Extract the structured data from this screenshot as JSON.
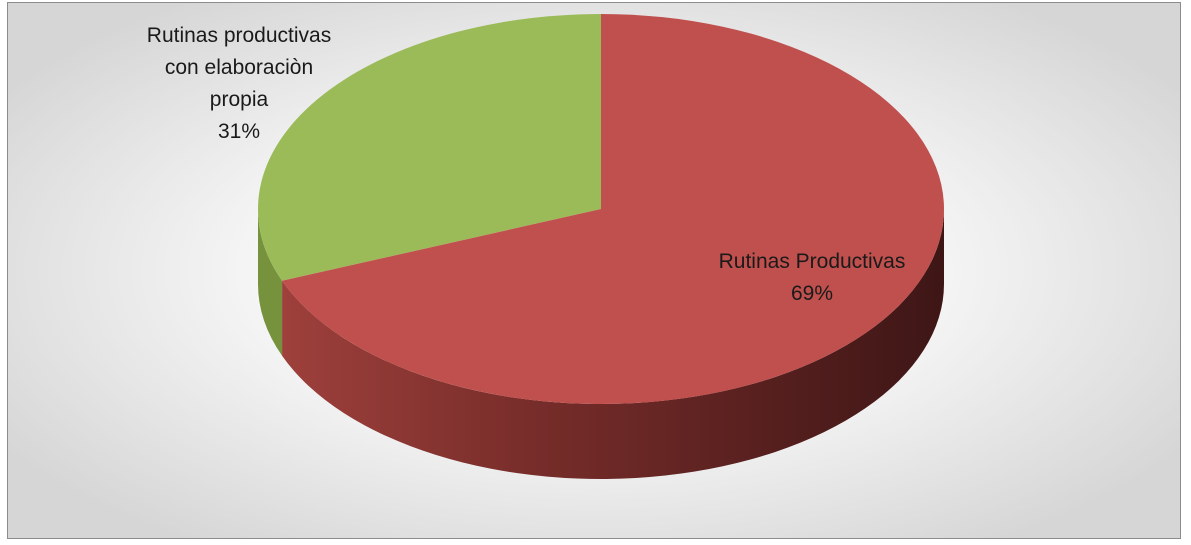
{
  "chart_data": {
    "type": "pie",
    "style": "3d",
    "title": "",
    "slices": [
      {
        "label_lines": [
          "Rutinas productivas",
          "con elaboraciòn",
          "propia"
        ],
        "percent_label": "31%",
        "value": 31,
        "color": "#9bbb59"
      },
      {
        "label_lines": [
          "Rutinas Productivas"
        ],
        "percent_label": "69%",
        "value": 69,
        "color": "#c0504d"
      }
    ]
  }
}
